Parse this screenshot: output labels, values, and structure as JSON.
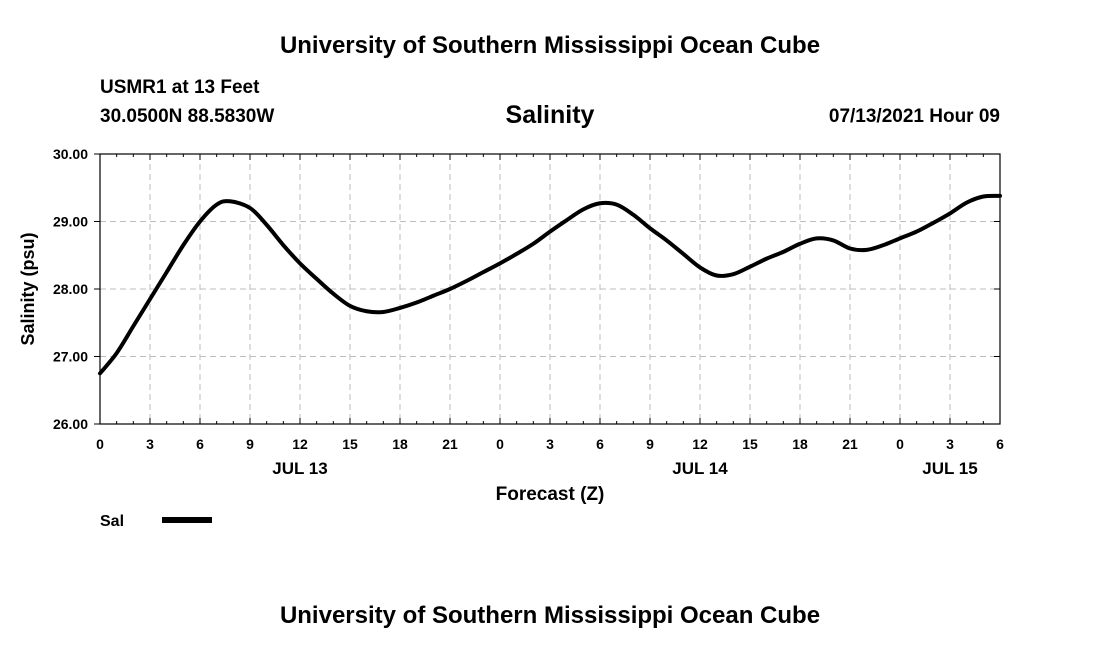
{
  "header": {
    "title": "University of Southern Mississippi Ocean Cube",
    "station": "USMR1 at 13 Feet",
    "location": "30.0500N  88.5830W",
    "variable": "Salinity",
    "datetime": "07/13/2021 Hour 09"
  },
  "footer": {
    "title": "University of Southern Mississippi Ocean Cube"
  },
  "legend": {
    "label": "Sal",
    "placement": "bottom-left"
  },
  "chart_data": {
    "type": "line",
    "title": "Salinity",
    "xlabel": "Forecast (Z)",
    "ylabel": "Salinity (psu)",
    "xlim": [
      0,
      54
    ],
    "ylim": [
      26.0,
      30.0
    ],
    "grid": true,
    "x_tick_labels": [
      "0",
      "3",
      "6",
      "9",
      "12",
      "15",
      "18",
      "21",
      "0",
      "3",
      "6",
      "9",
      "12",
      "15",
      "18",
      "21",
      "0",
      "3",
      "6"
    ],
    "date_labels": [
      {
        "label": "JUL 13",
        "x": 12
      },
      {
        "label": "JUL 14",
        "x": 36
      },
      {
        "label": "JUL 15",
        "x": 51
      }
    ],
    "y_tick_labels": [
      "26.00",
      "27.00",
      "28.00",
      "29.00",
      "30.00"
    ],
    "series": [
      {
        "name": "Sal",
        "x": [
          0,
          1,
          2,
          3,
          4,
          5,
          6,
          7,
          7.8,
          9,
          10,
          11,
          12,
          13,
          14,
          15,
          16,
          17,
          18,
          19,
          20,
          21,
          22,
          23,
          24,
          25,
          26,
          27,
          28,
          29,
          30,
          31,
          32,
          33,
          34,
          35,
          36,
          37,
          38,
          39,
          40,
          41,
          42,
          43,
          44,
          45,
          46,
          47,
          48,
          49,
          50,
          51,
          52,
          53,
          54
        ],
        "y": [
          26.75,
          27.05,
          27.45,
          27.85,
          28.25,
          28.65,
          29.0,
          29.25,
          29.3,
          29.2,
          28.95,
          28.65,
          28.38,
          28.15,
          27.93,
          27.75,
          27.67,
          27.66,
          27.72,
          27.8,
          27.9,
          28.0,
          28.12,
          28.25,
          28.38,
          28.52,
          28.67,
          28.85,
          29.02,
          29.18,
          29.27,
          29.25,
          29.1,
          28.9,
          28.72,
          28.52,
          28.32,
          28.2,
          28.22,
          28.33,
          28.45,
          28.55,
          28.67,
          28.75,
          28.72,
          28.6,
          28.58,
          28.65,
          28.75,
          28.85,
          28.98,
          29.12,
          29.28,
          29.37,
          29.38
        ]
      }
    ]
  }
}
